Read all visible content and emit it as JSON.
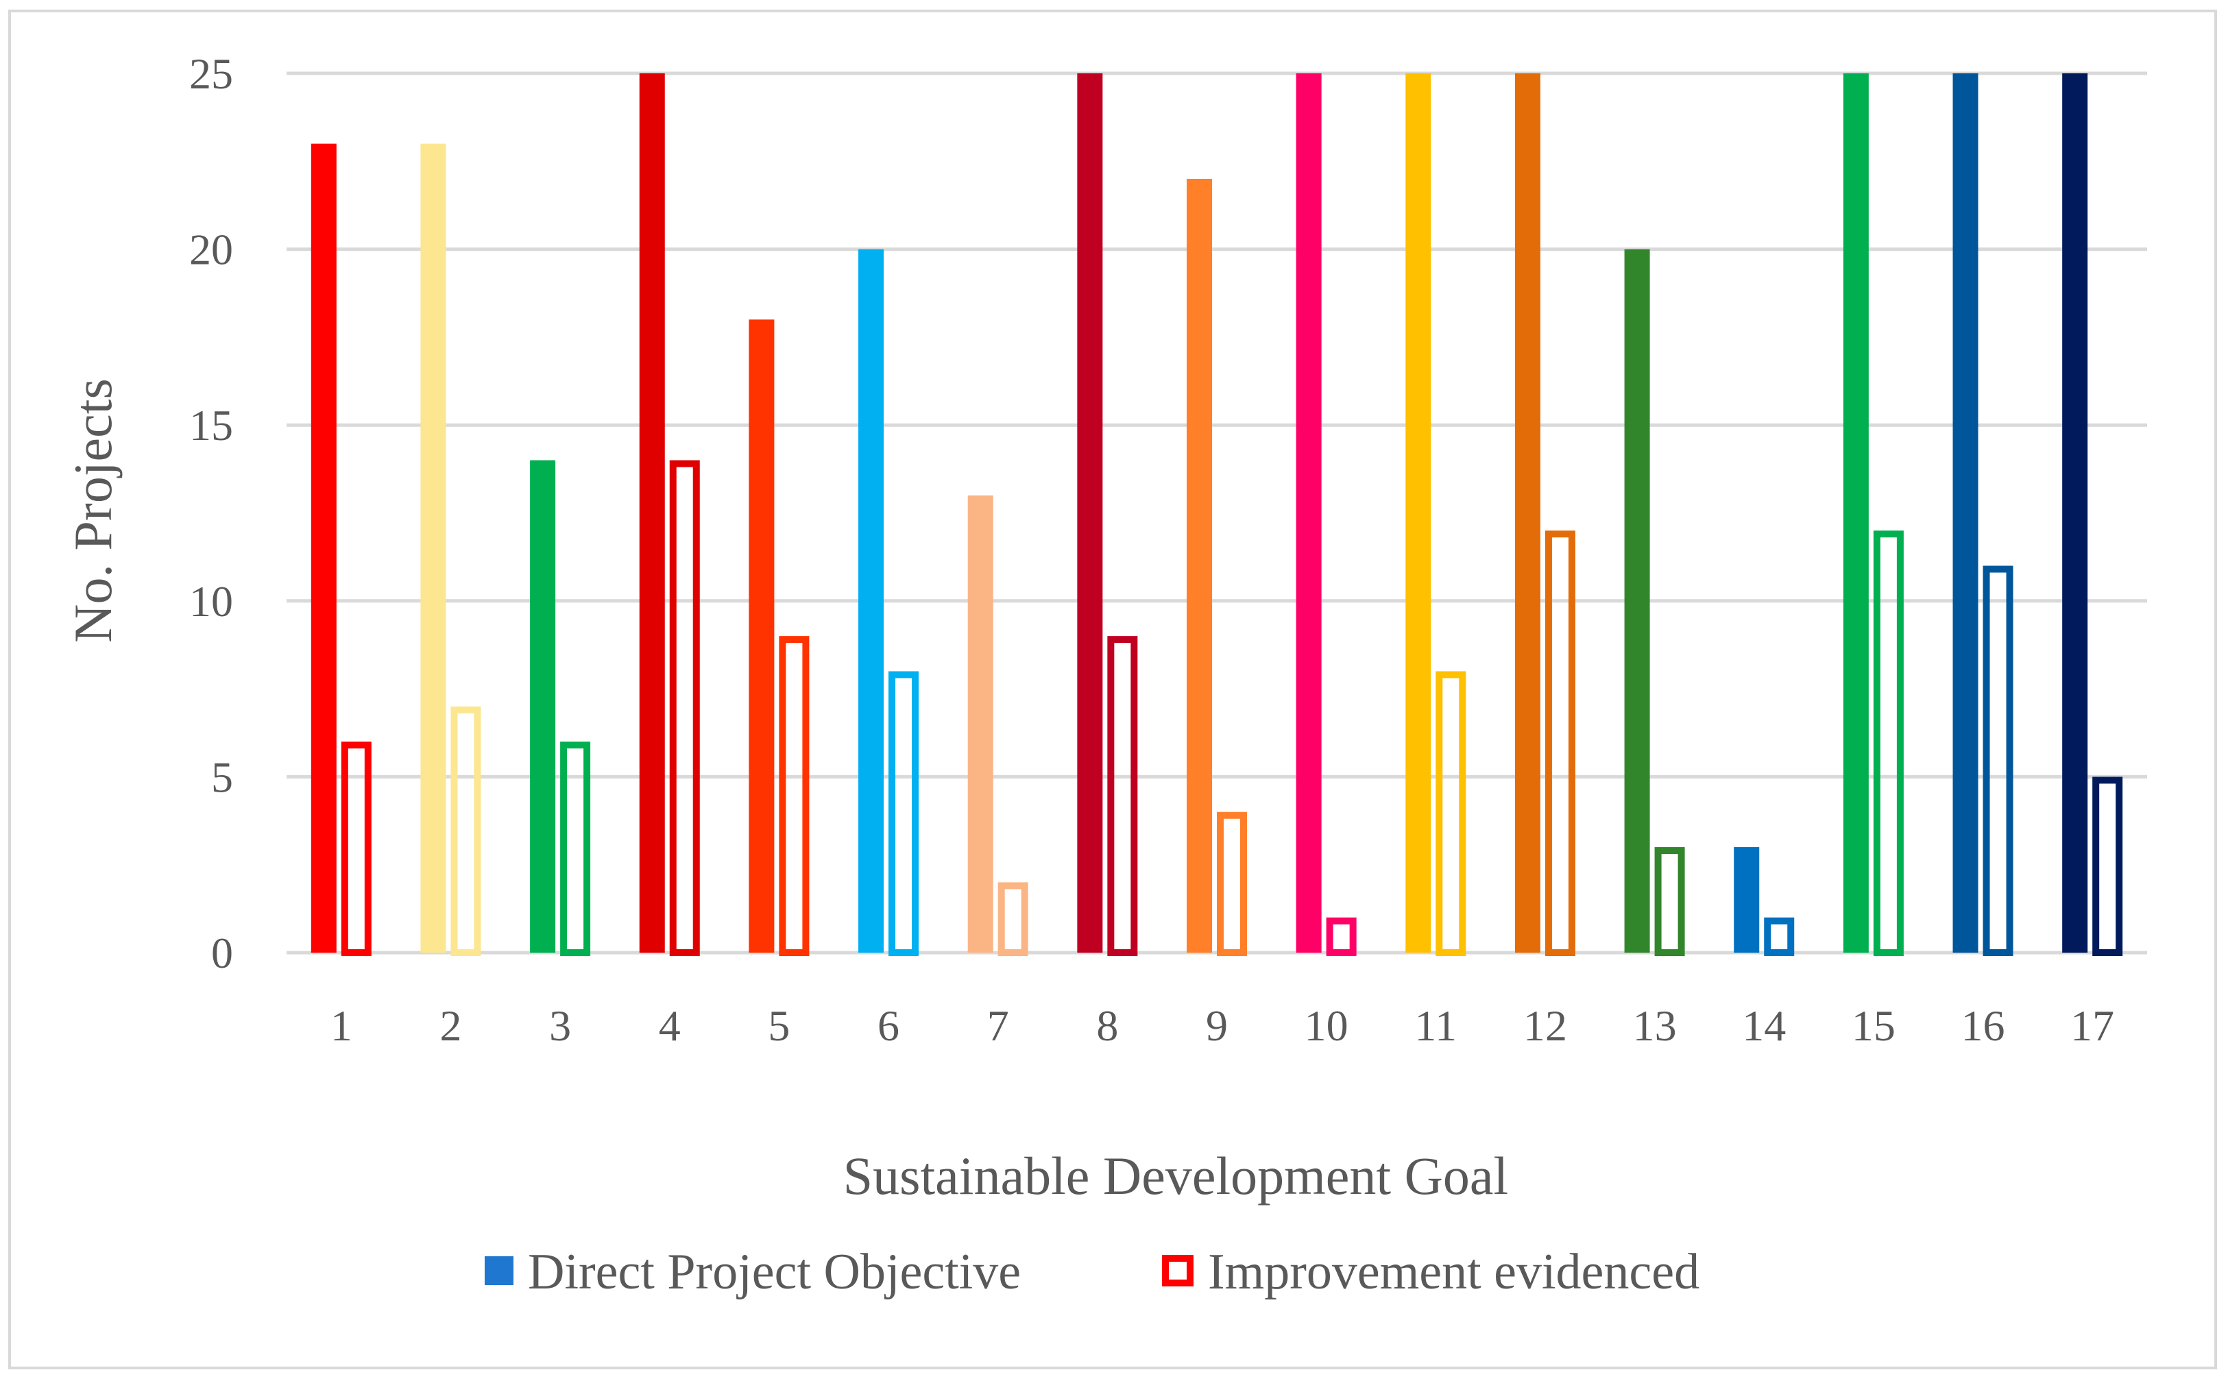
{
  "chart_data": {
    "type": "bar",
    "title": "",
    "xlabel": "Sustainable Development Goal",
    "ylabel": "No. Projects",
    "ylim": [
      0,
      25
    ],
    "yticks": [
      0,
      5,
      10,
      15,
      20,
      25
    ],
    "grid": true,
    "legend_position": "bottom",
    "categories": [
      "1",
      "2",
      "3",
      "4",
      "5",
      "6",
      "7",
      "8",
      "9",
      "10",
      "11",
      "12",
      "13",
      "14",
      "15",
      "16",
      "17"
    ],
    "category_colors": [
      "#ff0000",
      "#fce68f",
      "#00b050",
      "#e00000",
      "#ff3300",
      "#00b0f0",
      "#fbb585",
      "#c00020",
      "#ff8028",
      "#ff0066",
      "#ffc000",
      "#e36c09",
      "#31862c",
      "#0070c0",
      "#00b050",
      "#00569b",
      "#001a5c"
    ],
    "series": [
      {
        "name": "Direct Project Objective",
        "style": "filled",
        "legend_color": "#1f77d0",
        "values": [
          23,
          23,
          14,
          25,
          18,
          20,
          13,
          25,
          22,
          25,
          25,
          25,
          20,
          3,
          25,
          25,
          25
        ]
      },
      {
        "name": "Improvement evidenced",
        "style": "outline",
        "legend_color": "#ff0000",
        "values": [
          6,
          7,
          6,
          14,
          9,
          8,
          2,
          9,
          4,
          1,
          8,
          12,
          3,
          1,
          12,
          11,
          5
        ]
      }
    ]
  }
}
